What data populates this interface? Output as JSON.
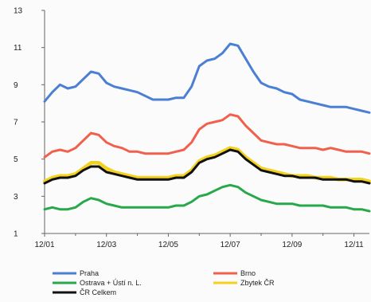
{
  "chart_data": {
    "type": "line",
    "title": "",
    "xlabel": "",
    "ylabel": "",
    "ylim": [
      1,
      13
    ],
    "yticks": [
      1,
      3,
      5,
      7,
      9,
      11,
      13
    ],
    "grid": false,
    "legend_position": "bottom",
    "x_tick_labels": [
      "12/01",
      "12/03",
      "12/05",
      "12/07",
      "12/09",
      "12/11"
    ],
    "x": [
      0,
      0.5,
      1,
      1.5,
      2,
      2.5,
      3,
      3.5,
      4,
      4.5,
      5,
      5.5,
      6,
      6.5,
      7,
      7.5,
      8,
      8.5,
      9,
      9.5,
      10,
      10.5,
      11,
      11.5,
      12,
      12.5,
      13,
      13.5,
      14,
      14.5,
      15,
      15.5,
      16,
      16.5,
      17,
      17.5,
      18,
      18.5,
      19,
      19.5,
      20,
      20.5,
      21
    ],
    "series": [
      {
        "name": "Praha",
        "color": "#4a7fd4",
        "values": [
          8.1,
          8.6,
          9.0,
          8.8,
          8.9,
          9.3,
          9.7,
          9.6,
          9.1,
          8.9,
          8.8,
          8.7,
          8.6,
          8.4,
          8.2,
          8.2,
          8.2,
          8.3,
          8.3,
          8.9,
          10.0,
          10.3,
          10.4,
          10.7,
          11.2,
          11.1,
          10.4,
          9.7,
          9.1,
          8.9,
          8.8,
          8.6,
          8.5,
          8.2,
          8.1,
          8.0,
          7.9,
          7.8,
          7.8,
          7.8,
          7.7,
          7.6,
          7.5
        ]
      },
      {
        "name": "Brno",
        "color": "#f0604c",
        "values": [
          5.1,
          5.4,
          5.5,
          5.4,
          5.6,
          6.0,
          6.4,
          6.3,
          5.9,
          5.7,
          5.6,
          5.4,
          5.4,
          5.3,
          5.3,
          5.3,
          5.3,
          5.4,
          5.5,
          5.9,
          6.6,
          6.9,
          7.0,
          7.1,
          7.4,
          7.3,
          6.8,
          6.4,
          6.0,
          5.9,
          5.8,
          5.8,
          5.7,
          5.6,
          5.6,
          5.6,
          5.5,
          5.6,
          5.5,
          5.4,
          5.4,
          5.4,
          5.3
        ]
      },
      {
        "name": "Ostrava + Ústí n. L.",
        "color": "#27a84a",
        "values": [
          2.3,
          2.4,
          2.3,
          2.3,
          2.4,
          2.7,
          2.9,
          2.8,
          2.6,
          2.5,
          2.4,
          2.4,
          2.4,
          2.4,
          2.4,
          2.4,
          2.4,
          2.5,
          2.5,
          2.7,
          3.0,
          3.1,
          3.3,
          3.5,
          3.6,
          3.5,
          3.2,
          3.0,
          2.8,
          2.7,
          2.6,
          2.6,
          2.6,
          2.5,
          2.5,
          2.5,
          2.5,
          2.4,
          2.4,
          2.4,
          2.3,
          2.3,
          2.2
        ]
      },
      {
        "name": "Zbytek ČR",
        "color": "#f2d21e",
        "values": [
          3.8,
          4.0,
          4.1,
          4.1,
          4.2,
          4.5,
          4.8,
          4.8,
          4.5,
          4.3,
          4.2,
          4.1,
          4.0,
          4.0,
          4.0,
          4.0,
          4.0,
          4.1,
          4.1,
          4.4,
          4.9,
          5.1,
          5.2,
          5.4,
          5.6,
          5.5,
          5.1,
          4.8,
          4.5,
          4.4,
          4.3,
          4.2,
          4.1,
          4.1,
          4.1,
          4.0,
          4.0,
          4.0,
          3.9,
          3.9,
          3.9,
          3.9,
          3.8
        ]
      },
      {
        "name": "ČR Celkem",
        "color": "#111111",
        "values": [
          3.7,
          3.9,
          4.0,
          4.0,
          4.1,
          4.4,
          4.6,
          4.6,
          4.3,
          4.2,
          4.1,
          4.0,
          3.9,
          3.9,
          3.9,
          3.9,
          3.9,
          4.0,
          4.0,
          4.3,
          4.8,
          5.0,
          5.1,
          5.3,
          5.5,
          5.4,
          5.0,
          4.7,
          4.4,
          4.3,
          4.2,
          4.1,
          4.1,
          4.0,
          4.0,
          4.0,
          3.9,
          3.9,
          3.9,
          3.9,
          3.8,
          3.8,
          3.7
        ]
      }
    ]
  }
}
